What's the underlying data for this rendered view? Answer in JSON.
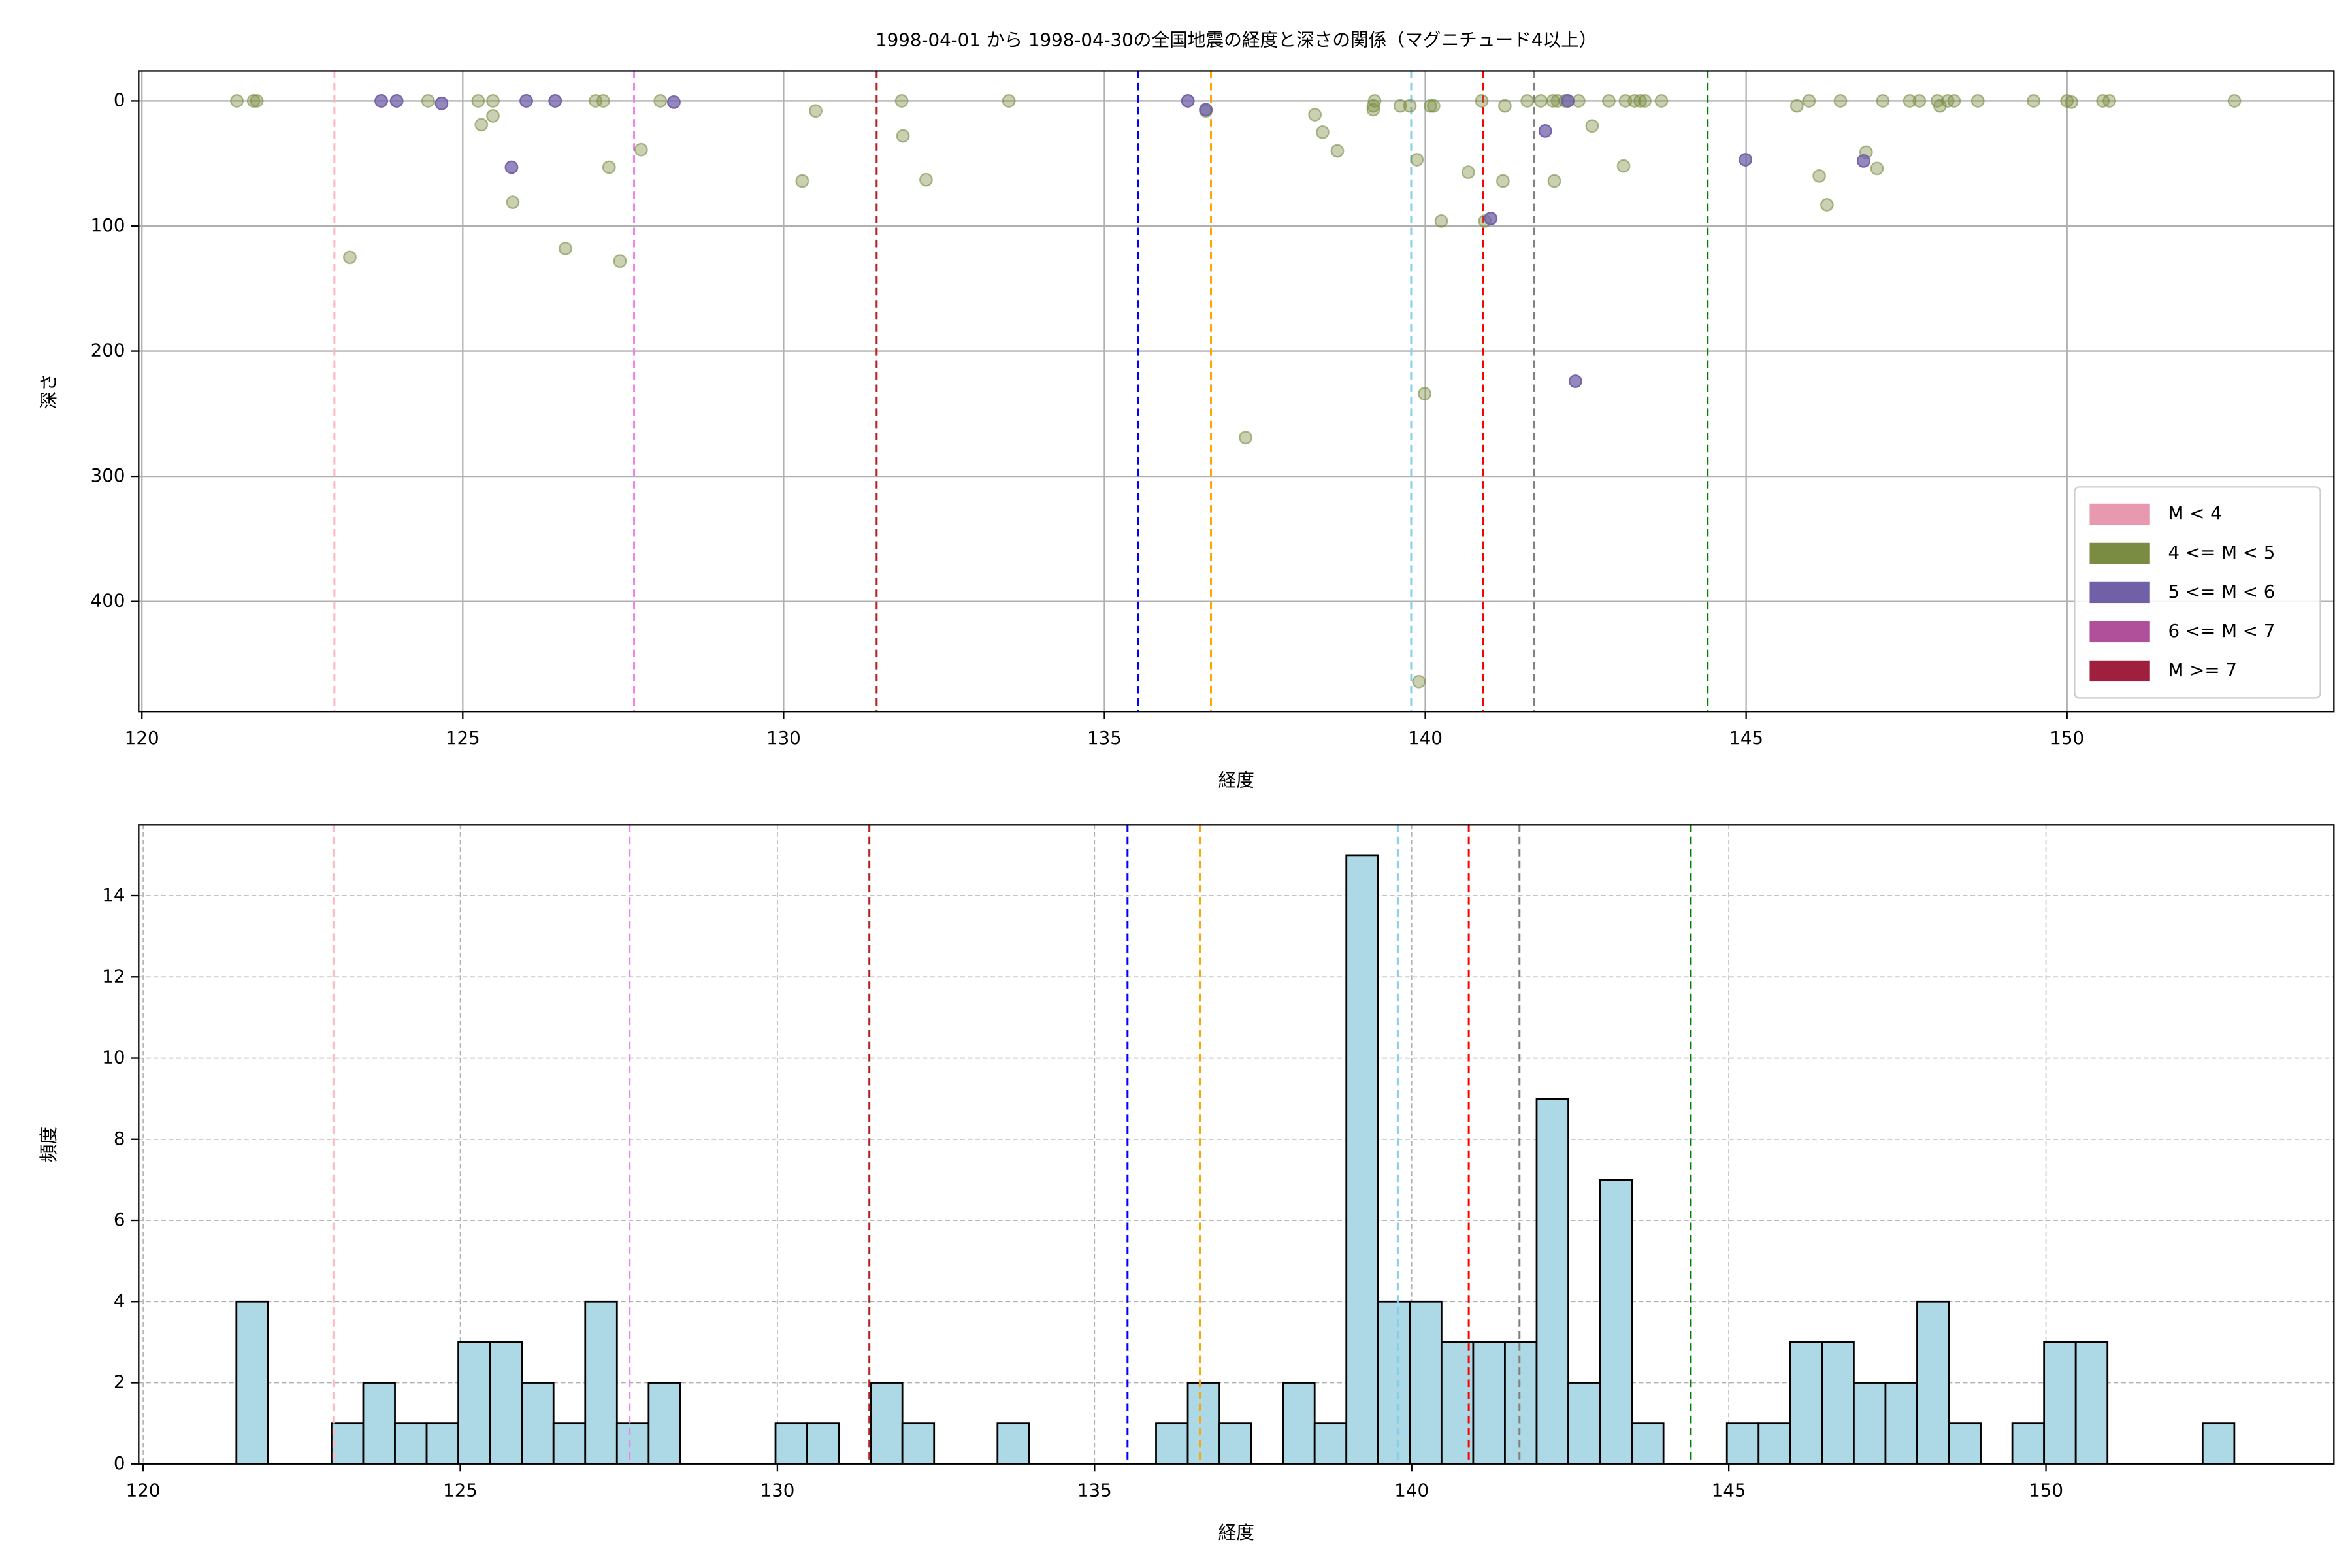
{
  "chart_data": [
    {
      "type": "scatter",
      "title": "1998-04-01 から 1998-04-30の全国地震の経度と深さの関係（マグニチュード4以上）",
      "xlabel": "経度",
      "ylabel": "深さ",
      "xlim": [
        119.95,
        154.16
      ],
      "ylim": [
        -24,
        488
      ],
      "invert_y": true,
      "xticks": [
        120,
        125,
        130,
        135,
        140,
        145,
        150
      ],
      "yticks": [
        0,
        100,
        200,
        300,
        400
      ],
      "grid": true,
      "grid_style": "solid",
      "legend": "lower right",
      "vlines": [
        {
          "x": 123.0,
          "color": "#ffb6c1"
        },
        {
          "x": 127.67,
          "color": "#ee82ee"
        },
        {
          "x": 131.45,
          "color": "#b22222"
        },
        {
          "x": 135.52,
          "color": "#0000ff"
        },
        {
          "x": 136.66,
          "color": "#ffa500"
        },
        {
          "x": 139.78,
          "color": "#87ceeb"
        },
        {
          "x": 140.9,
          "color": "#ff0000"
        },
        {
          "x": 141.7,
          "color": "#808080"
        },
        {
          "x": 144.4,
          "color": "#008000"
        }
      ],
      "series": [
        {
          "name": "M < 4",
          "color": "#e899b0",
          "alpha": 0.4,
          "x": [],
          "y": []
        },
        {
          "name": "4 <= M < 5",
          "color": "#7a8c42",
          "alpha": 0.4,
          "x": [
            121.48,
            121.74,
            121.79,
            123.24,
            124.46,
            125.24,
            125.29,
            125.47,
            125.47,
            125.78,
            126.6,
            127.07,
            127.19,
            127.28,
            127.45,
            127.78,
            128.08,
            130.29,
            130.5,
            131.84,
            131.86,
            132.22,
            133.51,
            136.58,
            137.2,
            138.28,
            138.4,
            138.63,
            139.19,
            139.19,
            139.21,
            139.61,
            139.76,
            139.87,
            139.9,
            139.99,
            140.08,
            140.13,
            140.25,
            140.67,
            140.88,
            140.93,
            141.21,
            141.24,
            141.59,
            141.8,
            141.99,
            142.06,
            142.01,
            142.18,
            142.39,
            142.6,
            142.86,
            143.12,
            143.09,
            143.26,
            143.35,
            143.42,
            143.68,
            145.79,
            145.98,
            146.14,
            146.26,
            146.47,
            146.87,
            147.04,
            147.13,
            147.55,
            147.7,
            147.98,
            148.02,
            148.14,
            148.24,
            148.61,
            149.48,
            150.0,
            150.07,
            150.56,
            150.66,
            152.61
          ],
          "y": [
            0,
            0,
            0,
            125,
            0,
            0,
            19,
            0,
            12,
            81,
            118,
            0,
            0,
            53,
            128,
            39,
            0,
            64,
            8,
            0,
            28,
            63,
            0,
            8,
            269,
            11,
            25,
            40,
            4,
            7,
            0,
            4,
            4,
            47,
            464,
            234,
            4,
            4,
            96,
            57,
            0,
            96,
            64,
            4,
            0,
            0,
            0,
            0,
            64,
            0,
            0,
            20,
            0,
            0,
            52,
            0,
            0,
            0,
            0,
            4,
            0,
            60,
            83,
            0,
            41,
            54,
            0,
            0,
            0,
            0,
            4,
            0,
            0,
            0,
            0,
            0,
            1,
            0,
            0,
            0
          ]
        },
        {
          "name": "5 <= M < 6",
          "color": "#7060a8",
          "alpha": 0.75,
          "x": [
            123.73,
            123.97,
            124.67,
            125.76,
            125.99,
            126.44,
            128.29,
            136.3,
            136.58,
            141.02,
            141.87,
            142.22,
            142.34,
            144.99,
            146.83
          ],
          "y": [
            0,
            0,
            2,
            53,
            0,
            0,
            1,
            0,
            7,
            94,
            24,
            0,
            224,
            47,
            48
          ]
        },
        {
          "name": "6 <= M < 7",
          "color": "#b0509a",
          "alpha": 0.75,
          "x": [],
          "y": []
        },
        {
          "name": "M >= 7",
          "color": "#9e1f3e",
          "alpha": 0.75,
          "x": [],
          "y": []
        }
      ]
    },
    {
      "type": "histogram",
      "xlabel": "経度",
      "ylabel": "頻度",
      "xlim": [
        119.93,
        154.54
      ],
      "ylim": [
        0,
        15.75
      ],
      "xticks": [
        120,
        125,
        130,
        135,
        140,
        145,
        150
      ],
      "yticks": [
        0,
        2,
        4,
        6,
        8,
        10,
        12,
        14
      ],
      "grid": true,
      "grid_style": "dashed",
      "color": "#add8e6",
      "vlines": [
        {
          "x": 123.0,
          "color": "#ffb6c1"
        },
        {
          "x": 127.67,
          "color": "#ee82ee"
        },
        {
          "x": 131.45,
          "color": "#b22222"
        },
        {
          "x": 135.52,
          "color": "#0000ff"
        },
        {
          "x": 136.66,
          "color": "#ffa500"
        },
        {
          "x": 139.78,
          "color": "#87ceeb"
        },
        {
          "x": 140.9,
          "color": "#ff0000"
        },
        {
          "x": 141.7,
          "color": "#808080"
        },
        {
          "x": 144.4,
          "color": "#008000"
        }
      ],
      "bins": [
        121.47,
        121.97,
        122.47,
        122.97,
        123.47,
        123.97,
        124.47,
        124.97,
        125.47,
        125.97,
        126.47,
        126.97,
        127.47,
        127.97,
        128.47,
        128.97,
        129.47,
        129.97,
        130.47,
        130.97,
        131.47,
        131.97,
        132.47,
        132.97,
        133.47,
        133.97,
        134.47,
        134.97,
        135.47,
        135.97,
        136.47,
        136.97,
        137.47,
        137.97,
        138.47,
        138.97,
        139.47,
        139.97,
        140.47,
        140.97,
        141.47,
        141.97,
        142.47,
        142.97,
        143.47,
        143.97,
        144.47,
        144.97,
        145.47,
        145.97,
        146.47,
        146.97,
        147.47,
        147.97,
        148.47,
        148.97,
        149.47,
        149.97,
        150.47,
        150.97,
        151.47,
        151.97,
        152.47,
        152.97
      ],
      "counts": [
        4,
        0,
        0,
        1,
        2,
        1,
        1,
        3,
        3,
        2,
        1,
        4,
        1,
        2,
        0,
        0,
        0,
        1,
        1,
        0,
        2,
        1,
        0,
        0,
        1,
        0,
        0,
        0,
        0,
        1,
        2,
        1,
        0,
        2,
        1,
        15,
        4,
        4,
        3,
        3,
        3,
        9,
        2,
        7,
        1,
        0,
        0,
        1,
        1,
        3,
        3,
        2,
        2,
        4,
        1,
        0,
        1,
        3,
        3,
        0,
        0,
        0,
        1
      ]
    }
  ]
}
